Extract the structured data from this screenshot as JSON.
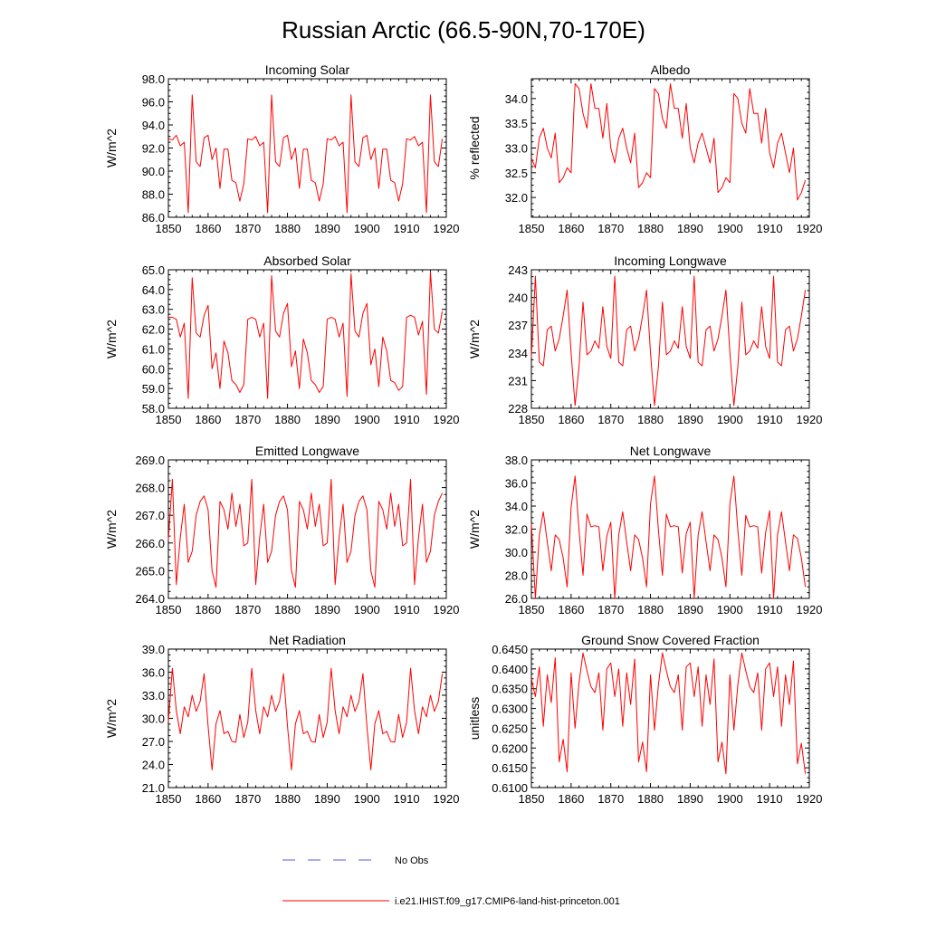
{
  "figure": {
    "title": "Russian Arctic (66.5-90N,70-170E)",
    "legend": {
      "no_obs_label": "No Obs",
      "model_label": "i.e21.IHIST.f09_g17.CMIP6-land-hist-princeton.001",
      "no_obs_color": "#5a5ad6",
      "model_color": "#ff0000"
    }
  },
  "chart_data": [
    {
      "type": "line",
      "title": "Incoming Solar",
      "ylabel": "W/m^2",
      "xlim": [
        1850,
        1920
      ],
      "ylim": [
        86.0,
        98.0
      ],
      "xticks": [
        "1850",
        "1860",
        "1870",
        "1880",
        "1890",
        "1900",
        "1910",
        "1920"
      ],
      "yticks": [
        "86.0",
        "88.0",
        "90.0",
        "92.0",
        "94.0",
        "96.0",
        "98.0"
      ],
      "x_start": 1850,
      "series": [
        {
          "name": "i.e21.IHIST.f09_g17.CMIP6-land-hist-princeton.001",
          "values": [
            92.8,
            92.7,
            93.1,
            92.2,
            92.5,
            86.4,
            96.6,
            90.8,
            90.4,
            92.9,
            93.1,
            91.0,
            92.0,
            88.5,
            91.9,
            91.9,
            89.2,
            89.0,
            87.4,
            88.9,
            92.8,
            92.7,
            93.0,
            92.2,
            92.5,
            86.4,
            96.6,
            90.8,
            90.4,
            92.9,
            93.1,
            91.0,
            92.0,
            88.5,
            91.9,
            91.9,
            89.2,
            89.0,
            87.4,
            88.9,
            92.8,
            92.7,
            93.0,
            92.2,
            92.5,
            86.4,
            96.6,
            90.8,
            90.4,
            92.9,
            93.1,
            91.0,
            92.0,
            88.5,
            91.9,
            91.9,
            89.2,
            89.0,
            87.4,
            88.9,
            92.8,
            92.7,
            93.0,
            92.2,
            92.5,
            86.4,
            96.6,
            90.8,
            90.4,
            92.8
          ]
        }
      ]
    },
    {
      "type": "line",
      "title": "Albedo",
      "ylabel": "% reflected",
      "xlim": [
        1850,
        1920
      ],
      "ylim": [
        31.6,
        34.4
      ],
      "xticks": [
        "1850",
        "1860",
        "1870",
        "1880",
        "1890",
        "1900",
        "1910",
        "1920"
      ],
      "yticks": [
        "32.0",
        "32.5",
        "33.0",
        "33.5",
        "34.0"
      ],
      "x_start": 1850,
      "series": [
        {
          "name": "i.e21.IHIST.f09_g17.CMIP6-land-hist-princeton.001",
          "values": [
            32.8,
            32.6,
            33.2,
            33.4,
            33.0,
            32.8,
            33.3,
            32.3,
            32.4,
            32.6,
            32.5,
            34.3,
            34.2,
            33.7,
            33.4,
            34.3,
            33.8,
            33.8,
            33.2,
            33.9,
            33.0,
            32.7,
            33.2,
            33.4,
            33.0,
            32.7,
            33.3,
            32.2,
            32.3,
            32.5,
            32.4,
            34.2,
            34.1,
            33.6,
            33.4,
            34.3,
            33.8,
            33.8,
            33.2,
            33.9,
            33.0,
            32.7,
            33.1,
            33.3,
            33.0,
            32.7,
            33.2,
            32.1,
            32.2,
            32.4,
            32.3,
            34.1,
            34.0,
            33.5,
            33.3,
            34.2,
            33.7,
            33.7,
            33.1,
            33.8,
            32.9,
            32.6,
            33.1,
            33.3,
            32.9,
            32.5,
            33.0,
            31.95,
            32.1,
            32.35
          ]
        }
      ]
    },
    {
      "type": "line",
      "title": "Absorbed Solar",
      "ylabel": "W/m^2",
      "xlim": [
        1850,
        1920
      ],
      "ylim": [
        58.0,
        65.0
      ],
      "xticks": [
        "1850",
        "1860",
        "1870",
        "1880",
        "1890",
        "1900",
        "1910",
        "1920"
      ],
      "yticks": [
        "58.0",
        "59.0",
        "60.0",
        "61.0",
        "62.0",
        "63.0",
        "64.0",
        "65.0"
      ],
      "x_start": 1850,
      "series": [
        {
          "name": "i.e21.IHIST.f09_g17.CMIP6-land-hist-princeton.001",
          "values": [
            62.6,
            62.6,
            62.5,
            61.6,
            62.3,
            58.5,
            64.6,
            61.8,
            61.6,
            62.7,
            63.2,
            60.0,
            60.8,
            59.0,
            61.4,
            60.8,
            59.4,
            59.2,
            58.8,
            59.2,
            62.5,
            62.6,
            62.5,
            61.6,
            62.3,
            58.5,
            64.7,
            61.9,
            61.6,
            62.8,
            63.3,
            60.1,
            60.9,
            59.0,
            61.5,
            60.8,
            59.4,
            59.2,
            58.8,
            59.1,
            62.5,
            62.6,
            62.5,
            61.6,
            62.3,
            58.6,
            64.8,
            61.9,
            61.6,
            62.8,
            63.3,
            60.2,
            61.0,
            59.1,
            61.6,
            60.9,
            59.4,
            59.3,
            58.9,
            59.1,
            62.6,
            62.7,
            62.6,
            61.7,
            62.4,
            58.7,
            64.9,
            62.0,
            61.8,
            62.9
          ]
        }
      ]
    },
    {
      "type": "line",
      "title": "Incoming Longwave",
      "ylabel": "W/m^2",
      "xlim": [
        1850,
        1920
      ],
      "ylim": [
        228,
        243
      ],
      "xticks": [
        "1850",
        "1860",
        "1870",
        "1880",
        "1890",
        "1900",
        "1910",
        "1920"
      ],
      "yticks": [
        "228",
        "231",
        "234",
        "237",
        "240",
        "243"
      ],
      "x_start": 1850,
      "series": [
        {
          "name": "i.e21.IHIST.f09_g17.CMIP6-land-hist-princeton.001",
          "values": [
            233.5,
            242.3,
            233.0,
            232.6,
            236.5,
            236.9,
            234.2,
            235.5,
            238.0,
            240.8,
            234.0,
            228.3,
            232.5,
            239.5,
            233.8,
            234.2,
            235.3,
            234.5,
            239.0,
            234.7,
            233.4,
            242.3,
            233.0,
            232.6,
            236.5,
            236.9,
            234.2,
            235.5,
            238.0,
            240.8,
            234.0,
            228.3,
            232.5,
            239.5,
            233.8,
            234.2,
            235.3,
            234.5,
            239.0,
            234.7,
            233.4,
            242.3,
            233.0,
            232.6,
            236.5,
            236.9,
            234.2,
            235.5,
            238.0,
            240.8,
            234.0,
            228.3,
            232.5,
            239.5,
            233.8,
            234.2,
            235.3,
            234.5,
            239.0,
            234.7,
            233.4,
            242.3,
            233.0,
            232.6,
            236.5,
            236.9,
            234.2,
            235.5,
            238.0,
            240.8
          ]
        }
      ]
    },
    {
      "type": "line",
      "title": "Emitted Longwave",
      "ylabel": "W/m^2",
      "xlim": [
        1850,
        1920
      ],
      "ylim": [
        264.0,
        269.0
      ],
      "xticks": [
        "1850",
        "1860",
        "1870",
        "1880",
        "1890",
        "1900",
        "1910",
        "1920"
      ],
      "yticks": [
        "264.0",
        "265.0",
        "266.0",
        "267.0",
        "268.0",
        "269.0"
      ],
      "x_start": 1850,
      "series": [
        {
          "name": "i.e21.IHIST.f09_g17.CMIP6-land-hist-princeton.001",
          "values": [
            266.1,
            268.3,
            264.5,
            266.2,
            267.4,
            265.3,
            265.7,
            267.0,
            267.5,
            267.7,
            267.2,
            265.0,
            264.4,
            267.5,
            267.2,
            266.5,
            267.8,
            266.6,
            267.4,
            265.9,
            266.0,
            268.3,
            264.5,
            266.2,
            267.4,
            265.3,
            265.7,
            267.0,
            267.5,
            267.7,
            267.2,
            265.0,
            264.4,
            267.5,
            267.2,
            266.5,
            267.8,
            266.6,
            267.4,
            265.9,
            266.0,
            268.3,
            264.5,
            266.2,
            267.4,
            265.3,
            265.7,
            267.0,
            267.5,
            267.7,
            267.2,
            265.0,
            264.4,
            267.5,
            267.2,
            266.5,
            267.8,
            266.6,
            267.4,
            265.9,
            266.0,
            268.3,
            264.5,
            266.2,
            267.4,
            265.3,
            265.7,
            267.0,
            267.5,
            267.8
          ]
        }
      ]
    },
    {
      "type": "line",
      "title": "Net Longwave",
      "ylabel": "W/m^2",
      "xlim": [
        1850,
        1920
      ],
      "ylim": [
        26.0,
        38.0
      ],
      "xticks": [
        "1850",
        "1860",
        "1870",
        "1880",
        "1890",
        "1900",
        "1910",
        "1920"
      ],
      "yticks": [
        "26.0",
        "28.0",
        "30.0",
        "32.0",
        "34.0",
        "36.0",
        "38.0"
      ],
      "x_start": 1850,
      "series": [
        {
          "name": "i.e21.IHIST.f09_g17.CMIP6-land-hist-princeton.001",
          "values": [
            32.5,
            26.0,
            31.5,
            33.5,
            30.9,
            28.4,
            31.5,
            31.1,
            29.5,
            27.0,
            33.9,
            36.6,
            31.9,
            28.0,
            33.3,
            32.2,
            32.3,
            32.2,
            28.4,
            31.4,
            32.6,
            26.0,
            31.5,
            33.5,
            30.9,
            28.4,
            31.5,
            31.1,
            29.5,
            27.0,
            34.2,
            36.6,
            31.9,
            28.0,
            33.3,
            32.2,
            32.3,
            32.2,
            28.2,
            31.6,
            32.6,
            26.0,
            31.5,
            33.5,
            30.9,
            28.4,
            31.5,
            31.1,
            29.5,
            27.0,
            34.2,
            36.6,
            31.9,
            28.0,
            33.2,
            32.2,
            32.3,
            32.2,
            28.2,
            31.7,
            33.6,
            26.0,
            31.5,
            33.5,
            30.9,
            28.4,
            31.5,
            31.2,
            29.5,
            27.0
          ]
        }
      ]
    },
    {
      "type": "line",
      "title": "Net Radiation",
      "ylabel": "W/m^2",
      "xlim": [
        1850,
        1920
      ],
      "ylim": [
        21.0,
        39.0
      ],
      "xticks": [
        "1850",
        "1860",
        "1870",
        "1880",
        "1890",
        "1900",
        "1910",
        "1920"
      ],
      "yticks": [
        "21.0",
        "24.0",
        "27.0",
        "30.0",
        "33.0",
        "36.0",
        "39.0"
      ],
      "x_start": 1850,
      "series": [
        {
          "name": "i.e21.IHIST.f09_g17.CMIP6-land-hist-princeton.001",
          "values": [
            29.5,
            36.5,
            31.0,
            28.0,
            31.5,
            30.2,
            33.0,
            30.9,
            32.2,
            35.8,
            29.0,
            23.3,
            29.3,
            31.0,
            28.0,
            28.3,
            27.0,
            26.9,
            30.5,
            27.5,
            29.5,
            36.5,
            31.0,
            28.0,
            31.5,
            30.2,
            33.0,
            30.9,
            32.2,
            35.8,
            29.0,
            23.3,
            29.3,
            31.0,
            28.0,
            28.3,
            27.0,
            26.9,
            30.5,
            27.5,
            29.5,
            36.5,
            31.0,
            28.0,
            31.5,
            30.2,
            33.0,
            30.9,
            32.2,
            35.8,
            29.0,
            23.3,
            29.3,
            31.0,
            28.0,
            28.3,
            27.0,
            26.9,
            30.5,
            27.5,
            29.5,
            36.5,
            31.0,
            28.0,
            31.5,
            30.2,
            33.0,
            30.9,
            32.2,
            35.8
          ]
        }
      ]
    },
    {
      "type": "line",
      "title": "Ground Snow Covered Fraction",
      "ylabel": "unitless",
      "xlim": [
        1850,
        1920
      ],
      "ylim": [
        0.61,
        0.645
      ],
      "xticks": [
        "1850",
        "1860",
        "1870",
        "1880",
        "1890",
        "1900",
        "1910",
        "1920"
      ],
      "yticks": [
        "0.6100",
        "0.6150",
        "0.6200",
        "0.6250",
        "0.6300",
        "0.6350",
        "0.6400",
        "0.6450"
      ],
      "x_start": 1850,
      "series": [
        {
          "name": "i.e21.IHIST.f09_g17.CMIP6-land-hist-princeton.001",
          "values": [
            0.6375,
            0.633,
            0.6405,
            0.6255,
            0.6385,
            0.6315,
            0.6428,
            0.6165,
            0.6222,
            0.614,
            0.639,
            0.625,
            0.6365,
            0.644,
            0.6395,
            0.6355,
            0.634,
            0.639,
            0.6245,
            0.64,
            0.6415,
            0.633,
            0.64,
            0.6255,
            0.639,
            0.631,
            0.6425,
            0.6165,
            0.6215,
            0.614,
            0.6385,
            0.6245,
            0.636,
            0.644,
            0.6395,
            0.6355,
            0.634,
            0.6385,
            0.6245,
            0.6405,
            0.6415,
            0.633,
            0.6405,
            0.6255,
            0.6385,
            0.631,
            0.6425,
            0.6165,
            0.6215,
            0.6135,
            0.6385,
            0.6245,
            0.636,
            0.644,
            0.6395,
            0.6355,
            0.634,
            0.639,
            0.6245,
            0.64,
            0.6415,
            0.633,
            0.6405,
            0.6255,
            0.6385,
            0.631,
            0.642,
            0.616,
            0.6212,
            0.6135
          ]
        }
      ]
    }
  ]
}
